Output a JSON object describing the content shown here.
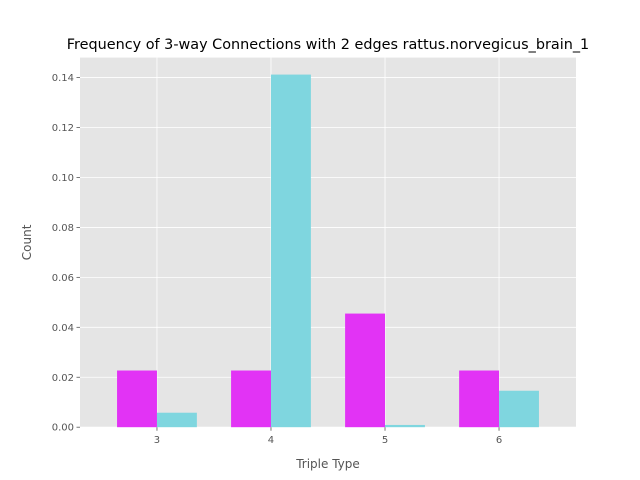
{
  "chart_data": {
    "type": "bar",
    "title": "Frequency of 3-way Connections with 2 edges rattus.norvegicus_brain_1",
    "xlabel": "Triple Type",
    "ylabel": "Count",
    "categories": [
      "3",
      "4",
      "5",
      "6"
    ],
    "series": [
      {
        "values": [
          0.0227,
          0.0227,
          0.0455,
          0.0227
        ],
        "color": "#e233f5"
      },
      {
        "values": [
          0.0058,
          0.1412,
          0.0009,
          0.0146
        ],
        "color": "#7fd6df"
      }
    ],
    "ylim": [
      0,
      0.148
    ],
    "yticks": [
      "0.00",
      "0.02",
      "0.04",
      "0.06",
      "0.08",
      "0.10",
      "0.12",
      "0.14"
    ],
    "grid": true,
    "background": "#e5e5e5",
    "grid_color": "#ffffff"
  }
}
